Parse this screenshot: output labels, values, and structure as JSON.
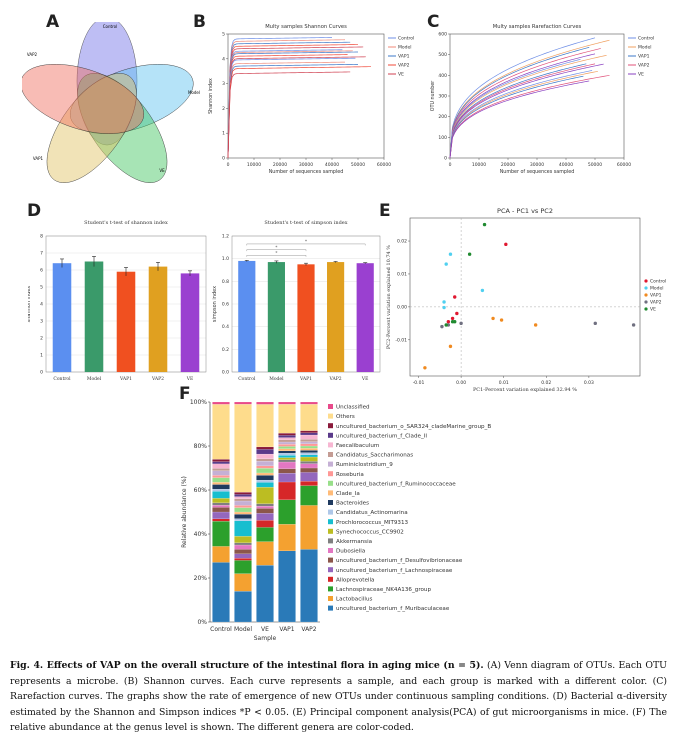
{
  "panels": {
    "A": "A",
    "B": "B",
    "C": "C",
    "D": "D",
    "E": "E",
    "F": "F"
  },
  "venn": {
    "labels": [
      "Control",
      "Model",
      "VE",
      "VAP1",
      "VAP2"
    ],
    "colors": [
      "#6f6fe6",
      "#5bc0f0",
      "#3cc45a",
      "#e0c060",
      "#f06a5a"
    ]
  },
  "chart_data": [
    {
      "type": "line",
      "id": "B",
      "title": "Multy samples Shannon Curves",
      "xlabel": "Number of sequences sampled",
      "ylabel": "Shannon index",
      "xlim": [
        0,
        60000
      ],
      "ylim": [
        0,
        5
      ],
      "xticks": [
        0,
        10000,
        20000,
        30000,
        40000,
        50000,
        60000
      ],
      "yticks": [
        0,
        1,
        2,
        3,
        4,
        5
      ],
      "legend": [
        "Control",
        "Model",
        "VAP1",
        "VAP2",
        "VE"
      ],
      "colors": [
        "#6f8fe6",
        "#f08a7a",
        "#3c78c8",
        "#f04a3a",
        "#d04050"
      ],
      "series_plateaus": [
        4.8,
        4.7,
        4.6,
        4.5,
        4.4,
        4.3,
        4.25,
        4.2,
        4.1,
        4.0,
        3.95,
        3.8,
        3.7,
        3.6,
        3.4
      ],
      "x_end": [
        40000,
        45000,
        47000,
        50000,
        52000,
        44000,
        48000,
        50000,
        46000,
        53000,
        49000,
        45000,
        50000,
        55000,
        47000
      ]
    },
    {
      "type": "line",
      "id": "C",
      "title": "Multy samples Rarefaction Curves",
      "xlabel": "Number of sequences sampled",
      "ylabel": "OTU number",
      "xlim": [
        0,
        60000
      ],
      "ylim": [
        0,
        600
      ],
      "xticks": [
        0,
        10000,
        20000,
        30000,
        40000,
        50000,
        60000
      ],
      "yticks": [
        0,
        100,
        200,
        300,
        400,
        500,
        600
      ],
      "legend": [
        "Control",
        "Model",
        "VAP1",
        "VAP2",
        "VE"
      ],
      "colors": [
        "#6f8fe6",
        "#f0a060",
        "#3c78c8",
        "#e0507a",
        "#8a40c0"
      ],
      "series_end": [
        600,
        570,
        560,
        540,
        520,
        510,
        500,
        480,
        470,
        460,
        440,
        430,
        420,
        400,
        390
      ],
      "x_end": [
        50000,
        55000,
        48000,
        52000,
        50000,
        45000,
        54000,
        47000,
        50000,
        53000,
        49000,
        51000,
        46000,
        55000,
        48000
      ]
    },
    {
      "type": "bar",
      "id": "D1",
      "title": "Student's t-test of shannon index",
      "ylabel": "shannon index",
      "categories": [
        "Control",
        "Model",
        "VAP1",
        "VAP2",
        "VE"
      ],
      "values": [
        6.4,
        6.5,
        5.9,
        6.2,
        5.8
      ],
      "errors": [
        0.25,
        0.3,
        0.25,
        0.25,
        0.15
      ],
      "colors": [
        "#5b8ff0",
        "#3a9a6a",
        "#f05020",
        "#e0a020",
        "#9a40d0"
      ],
      "ylim": [
        0,
        8
      ],
      "yticks": [
        0,
        1,
        2,
        3,
        4,
        5,
        6,
        7,
        8
      ]
    },
    {
      "type": "bar",
      "id": "D2",
      "title": "Student's t-test of simpson index",
      "ylabel": "simpson index",
      "categories": [
        "Control",
        "Model",
        "VAP1",
        "VAP2",
        "VE"
      ],
      "values": [
        0.98,
        0.97,
        0.95,
        0.97,
        0.96
      ],
      "errors": [
        0.005,
        0.01,
        0.01,
        0.005,
        0.005
      ],
      "colors": [
        "#5b8ff0",
        "#3a9a6a",
        "#f05020",
        "#e0a020",
        "#9a40d0"
      ],
      "ylim": [
        0,
        1.2
      ],
      "yticks": [
        0.0,
        0.2,
        0.4,
        0.6,
        0.8,
        1.0,
        1.2
      ],
      "sig": [
        "*",
        "*",
        "*"
      ]
    },
    {
      "type": "scatter",
      "id": "E",
      "title": "PCA - PC1 vs PC2",
      "xlabel": "PC1-Percent variation explained 32.94 %",
      "ylabel": "PC2-Percent variation explained 10.74 %",
      "xlim": [
        -0.012,
        0.042
      ],
      "ylim": [
        -0.021,
        0.027
      ],
      "xticks": [
        -0.01,
        0.0,
        0.01,
        0.02,
        0.03
      ],
      "yticks": [
        -0.01,
        0.0,
        0.01,
        0.02
      ],
      "legend": [
        "Control",
        "Model",
        "VAP1",
        "VAP2",
        "VE"
      ],
      "colors": [
        "#e01830",
        "#50d0f0",
        "#f08a20",
        "#707080",
        "#208a30"
      ],
      "points": [
        {
          "g": 0,
          "x": 0.0105,
          "y": 0.019
        },
        {
          "g": 0,
          "x": -0.0015,
          "y": 0.003
        },
        {
          "g": 0,
          "x": -0.001,
          "y": -0.002
        },
        {
          "g": 0,
          "x": -0.003,
          "y": -0.0045
        },
        {
          "g": 0,
          "x": -0.002,
          "y": -0.0035
        },
        {
          "g": 1,
          "x": -0.0025,
          "y": 0.016
        },
        {
          "g": 1,
          "x": -0.0035,
          "y": 0.013
        },
        {
          "g": 1,
          "x": -0.004,
          "y": 0.0015
        },
        {
          "g": 1,
          "x": -0.004,
          "y": -0.0002
        },
        {
          "g": 1,
          "x": 0.005,
          "y": 0.005
        },
        {
          "g": 2,
          "x": -0.0025,
          "y": -0.012
        },
        {
          "g": 2,
          "x": -0.0085,
          "y": -0.0185
        },
        {
          "g": 2,
          "x": 0.0075,
          "y": -0.0035
        },
        {
          "g": 2,
          "x": 0.0095,
          "y": -0.004
        },
        {
          "g": 2,
          "x": 0.0175,
          "y": -0.0055
        },
        {
          "g": 3,
          "x": -0.003,
          "y": -0.0055
        },
        {
          "g": 3,
          "x": 0.0,
          "y": -0.005
        },
        {
          "g": 3,
          "x": 0.0315,
          "y": -0.005
        },
        {
          "g": 3,
          "x": 0.0405,
          "y": -0.0055
        },
        {
          "g": 3,
          "x": -0.0045,
          "y": -0.006
        },
        {
          "g": 4,
          "x": 0.0055,
          "y": 0.025
        },
        {
          "g": 4,
          "x": 0.002,
          "y": 0.016
        },
        {
          "g": 4,
          "x": -0.002,
          "y": -0.0045
        },
        {
          "g": 4,
          "x": -0.0035,
          "y": -0.0055
        },
        {
          "g": 4,
          "x": -0.0015,
          "y": -0.0045
        }
      ]
    },
    {
      "type": "bar",
      "id": "F",
      "stacked": true,
      "xlabel": "Sample",
      "ylabel": "Relative abundance (%)",
      "categories": [
        "Control",
        "Model",
        "VE",
        "VAP1",
        "VAP2"
      ],
      "yticks": [
        "0%",
        "20%",
        "40%",
        "60%",
        "80%",
        "100%"
      ],
      "series": [
        {
          "name": "uncultured_bacterium_f_Muribaculaceae",
          "color": "#2a7ab8",
          "values": [
            26,
            14,
            24,
            32,
            33
          ]
        },
        {
          "name": "Lactobacillus",
          "color": "#f4a130",
          "values": [
            7,
            8,
            10,
            12,
            20
          ]
        },
        {
          "name": "Lachnospiraceae_NK4A136_group",
          "color": "#2ca02c",
          "values": [
            11,
            6,
            6,
            11,
            9
          ]
        },
        {
          "name": "Alloprevotella",
          "color": "#d62728",
          "values": [
            1,
            1,
            3,
            8,
            2
          ]
        },
        {
          "name": "uncultured_bacterium_f_Lachnospiraceae",
          "color": "#9467bd",
          "values": [
            3,
            2,
            3,
            4,
            4
          ]
        },
        {
          "name": "uncultured_bacterium_f_Desulfovibrionaceae",
          "color": "#8c564b",
          "values": [
            2,
            2,
            2,
            2,
            2
          ]
        },
        {
          "name": "Dubosiella",
          "color": "#e377c2",
          "values": [
            1,
            2,
            1,
            3,
            2
          ]
        },
        {
          "name": "Akkermansia",
          "color": "#7f7f7f",
          "values": [
            1,
            1,
            1,
            1,
            1
          ]
        },
        {
          "name": "Synechococcus_CC9902",
          "color": "#bcbd22",
          "values": [
            2,
            3,
            7,
            1,
            2
          ]
        },
        {
          "name": "Prochlorococcus_MIT9313",
          "color": "#17becf",
          "values": [
            3,
            7,
            2,
            1,
            1
          ]
        },
        {
          "name": "Candidatus_Actinomarina",
          "color": "#aec7e8",
          "values": [
            1,
            1,
            1,
            1,
            1
          ]
        },
        {
          "name": "Bacteroides",
          "color": "#1f3a5f",
          "values": [
            2,
            2,
            2,
            1,
            1
          ]
        },
        {
          "name": "Clade_Ia",
          "color": "#ffbb78",
          "values": [
            1,
            1,
            1,
            1,
            1
          ]
        },
        {
          "name": "uncultured_bacterium_f_Ruminococcaceae",
          "color": "#98df8a",
          "values": [
            2,
            2,
            2,
            1,
            1
          ]
        },
        {
          "name": "Roseburia",
          "color": "#ff9896",
          "values": [
            1,
            1,
            1,
            1,
            1
          ]
        },
        {
          "name": "Ruminiclostridium_9",
          "color": "#c5b0d5",
          "values": [
            2,
            2,
            2,
            1,
            1
          ]
        },
        {
          "name": "Candidatus_Saccharimonas",
          "color": "#c49c94",
          "values": [
            1,
            1,
            1,
            1,
            1
          ]
        },
        {
          "name": "Faecalibaculum",
          "color": "#f7b6d2",
          "values": [
            2,
            1,
            2,
            1,
            2
          ]
        },
        {
          "name": "uncultured_bacterium_f_Clade_II",
          "color": "#5a3a8a",
          "values": [
            1,
            1,
            2,
            1,
            1
          ]
        },
        {
          "name": "uncultured_bacterium_o_SAR324_cladeMarine_group_B",
          "color": "#8a1a3a",
          "values": [
            1,
            1,
            1,
            1,
            1
          ]
        },
        {
          "name": "Others",
          "color": "#fedc8c",
          "values": [
            24,
            40,
            18,
            13,
            12
          ]
        },
        {
          "name": "Unclassified",
          "color": "#e84a8a",
          "values": [
            1,
            1,
            1,
            1,
            1
          ]
        }
      ]
    }
  ],
  "caption": {
    "title": "Fig. 4.  Effects of VAP on the overall structure of the intestinal flora in aging mice (n = 5).",
    "body": " (A) Venn diagram of OTUs.  Each OTU represents a microbe.  (B) Shannon curves.  Each curve represents a sample, and each group is marked with a different color.  (C) Rarefaction curves.  The graphs show the rate of emergence of new OTUs under continuous sampling conditions.  (D) Bacterial α-diversity estimated by the Shannon and Simpson indices *P < 0.05. (E) Principal component analysis(PCA) of gut microorganisms in mice.  (F) The relative abundance at the genus level is shown.  The different genera are color-coded."
  }
}
